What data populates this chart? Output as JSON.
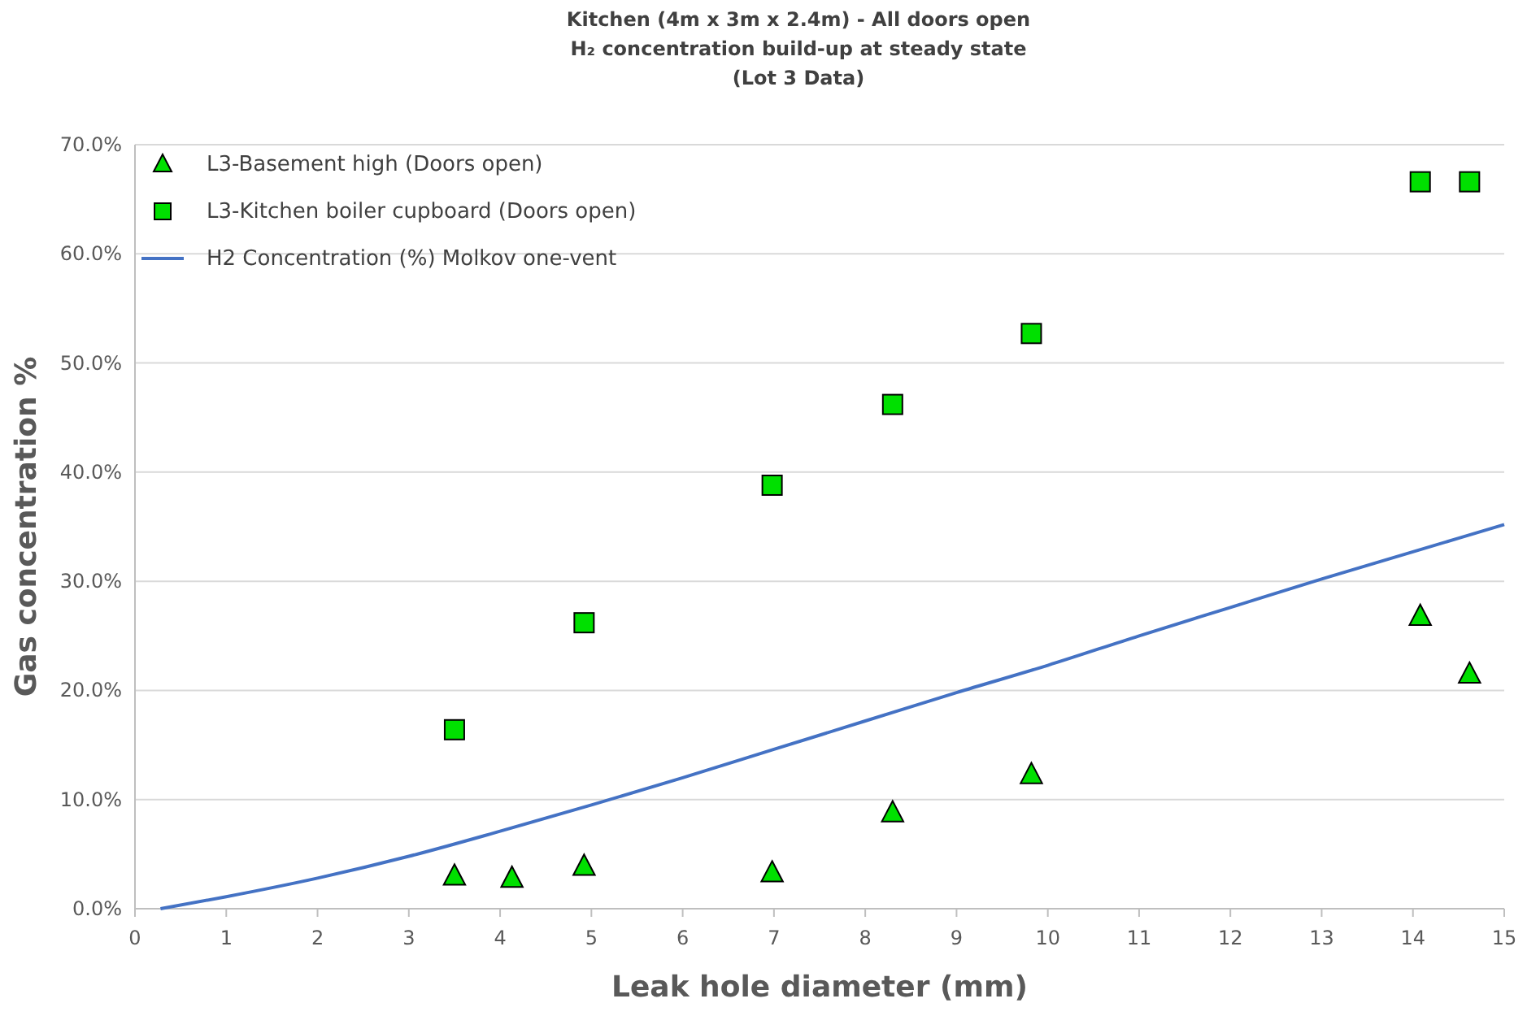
{
  "chart_data": {
    "type": "scatter",
    "title": "Kitchen (4m x 3m x 2.4m) - All doors open",
    "subtitle": "H₂ concentration build-up at steady state\n(Lot 3 Data)",
    "xlabel": "Leak hole diameter (mm)",
    "ylabel": "Gas concentration %",
    "xlim": [
      0,
      15
    ],
    "xticks": [
      0,
      1,
      2,
      3,
      4,
      5,
      6,
      7,
      8,
      9,
      10,
      11,
      12,
      13,
      14,
      15
    ],
    "ylim": [
      0,
      70
    ],
    "yticks": [
      {
        "value": 0,
        "label": "0.0%"
      },
      {
        "value": 10,
        "label": "10.0%"
      },
      {
        "value": 20,
        "label": "20.0%"
      },
      {
        "value": 30,
        "label": "30.0%"
      },
      {
        "value": 40,
        "label": "40.0%"
      },
      {
        "value": 50,
        "label": "50.0%"
      },
      {
        "value": 60,
        "label": "60.0%"
      },
      {
        "value": 70,
        "label": "70.0%"
      }
    ],
    "grid": "y",
    "legend": "top left",
    "series": [
      {
        "name": "L3-Basement high (Doors open)",
        "marker": "triangle",
        "color": "#00e000",
        "x": [
          3.5,
          4.13,
          4.92,
          6.98,
          8.3,
          9.82,
          14.08,
          14.62
        ],
        "values": [
          3.0,
          2.8,
          3.9,
          3.3,
          8.8,
          12.3,
          26.8,
          21.5
        ]
      },
      {
        "name": "L3-Kitchen boiler cupboard (Doors open)",
        "marker": "square",
        "color": "#00e000",
        "x": [
          3.5,
          4.92,
          6.98,
          8.3,
          9.82,
          14.08,
          14.62
        ],
        "values": [
          16.4,
          26.2,
          38.8,
          46.2,
          52.7,
          66.6,
          66.6
        ]
      },
      {
        "name": "H2 Concentration (%)  Molkov one-vent",
        "type": "line",
        "marker": "none",
        "line_style": "solid",
        "color": "#4472c4",
        "x": [
          0.28,
          1,
          2,
          3,
          4,
          5,
          6,
          7,
          8,
          9,
          10,
          11,
          12,
          13,
          14,
          15
        ],
        "values": [
          0,
          1.1,
          2.8,
          4.8,
          7.1,
          9.5,
          12.0,
          14.6,
          17.2,
          19.8,
          22.3,
          25.0,
          27.6,
          30.2,
          32.7,
          35.2
        ]
      }
    ]
  }
}
